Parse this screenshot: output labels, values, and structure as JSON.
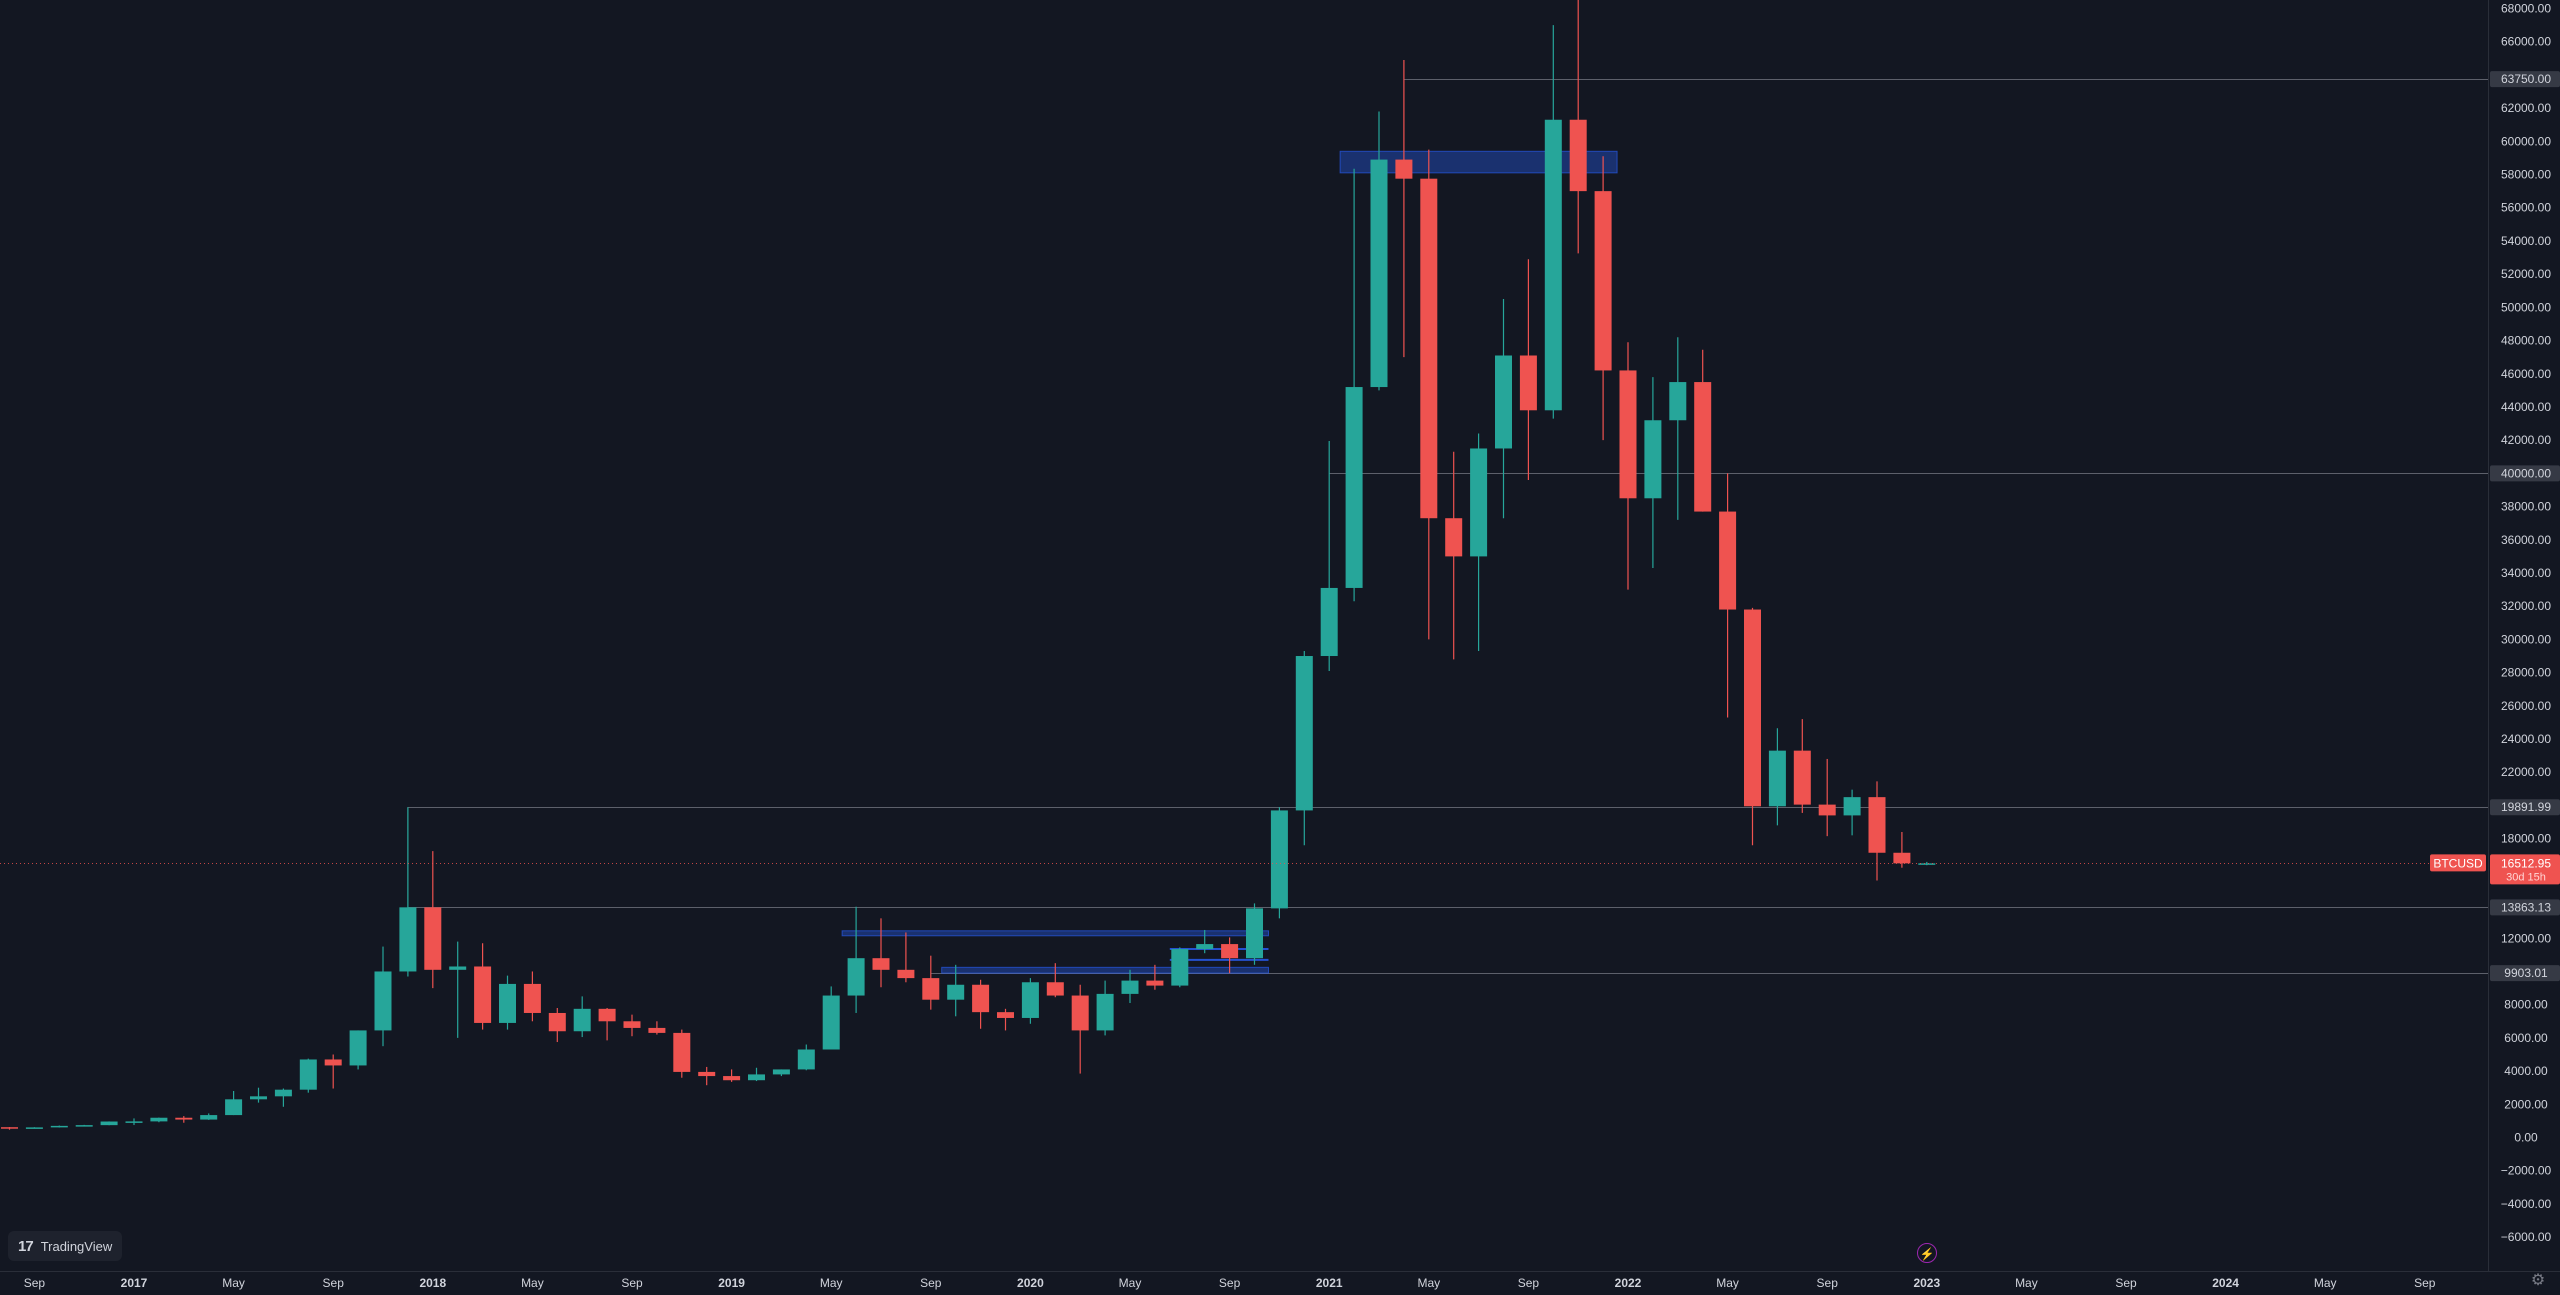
{
  "app": {
    "symbol": "BTCUSD",
    "brand": "TradingView",
    "countdown": "30d 15h"
  },
  "icons": {
    "logo": "tradingview-logo-icon",
    "settings": "gear-icon",
    "bolt": "lightning-icon"
  },
  "colors": {
    "background": "#131722",
    "up": "#26a69a",
    "down": "#ef5350",
    "zone": "#2962ff",
    "level_line": "#5d606b",
    "axis_text": "#d1d4dc"
  },
  "chart_data": {
    "type": "candlestick",
    "timeframe": "monthly",
    "ylim": [
      -7000,
      68500
    ],
    "y_ticks": [
      -6000,
      -4000,
      -2000,
      0,
      2000,
      4000,
      6000,
      8000,
      12000,
      18000,
      22000,
      24000,
      26000,
      28000,
      30000,
      32000,
      34000,
      36000,
      38000,
      42000,
      44000,
      46000,
      48000,
      50000,
      52000,
      54000,
      56000,
      58000,
      60000,
      62000,
      66000,
      68000
    ],
    "y_tick_labels": [
      "−6000.00",
      "−4000.00",
      "−2000.00",
      "0.00",
      "2000.00",
      "4000.00",
      "6000.00",
      "8000.00",
      "12000.00",
      "18000.00",
      "22000.00",
      "24000.00",
      "26000.00",
      "28000.00",
      "30000.00",
      "32000.00",
      "34000.00",
      "36000.00",
      "38000.00",
      "42000.00",
      "44000.00",
      "46000.00",
      "48000.00",
      "50000.00",
      "52000.00",
      "54000.00",
      "56000.00",
      "58000.00",
      "60000.00",
      "62000.00",
      "66000.00",
      "68000.00"
    ],
    "x_start": "2016-08",
    "x_end": "2025-02",
    "x_ticks": [
      {
        "date": "2016-09",
        "label": "Sep",
        "major": false
      },
      {
        "date": "2017-01",
        "label": "2017",
        "major": true
      },
      {
        "date": "2017-05",
        "label": "May",
        "major": false
      },
      {
        "date": "2017-09",
        "label": "Sep",
        "major": false
      },
      {
        "date": "2018-01",
        "label": "2018",
        "major": true
      },
      {
        "date": "2018-05",
        "label": "May",
        "major": false
      },
      {
        "date": "2018-09",
        "label": "Sep",
        "major": false
      },
      {
        "date": "2019-01",
        "label": "2019",
        "major": true
      },
      {
        "date": "2019-05",
        "label": "May",
        "major": false
      },
      {
        "date": "2019-09",
        "label": "Sep",
        "major": false
      },
      {
        "date": "2020-01",
        "label": "2020",
        "major": true
      },
      {
        "date": "2020-05",
        "label": "May",
        "major": false
      },
      {
        "date": "2020-09",
        "label": "Sep",
        "major": false
      },
      {
        "date": "2021-01",
        "label": "2021",
        "major": true
      },
      {
        "date": "2021-05",
        "label": "May",
        "major": false
      },
      {
        "date": "2021-09",
        "label": "Sep",
        "major": false
      },
      {
        "date": "2022-01",
        "label": "2022",
        "major": true
      },
      {
        "date": "2022-05",
        "label": "May",
        "major": false
      },
      {
        "date": "2022-09",
        "label": "Sep",
        "major": false
      },
      {
        "date": "2023-01",
        "label": "2023",
        "major": true
      },
      {
        "date": "2023-05",
        "label": "May",
        "major": false
      },
      {
        "date": "2023-09",
        "label": "Sep",
        "major": false
      },
      {
        "date": "2024-01",
        "label": "2024",
        "major": true
      },
      {
        "date": "2024-05",
        "label": "May",
        "major": false
      },
      {
        "date": "2024-09",
        "label": "Sep",
        "major": false
      }
    ],
    "candles": [
      {
        "t": "2016-08",
        "o": 620,
        "h": 630,
        "l": 470,
        "c": 570
      },
      {
        "t": "2016-09",
        "o": 575,
        "h": 620,
        "l": 560,
        "c": 609
      },
      {
        "t": "2016-10",
        "o": 609,
        "h": 720,
        "l": 600,
        "c": 700
      },
      {
        "t": "2016-11",
        "o": 700,
        "h": 760,
        "l": 690,
        "c": 745
      },
      {
        "t": "2016-12",
        "o": 745,
        "h": 970,
        "l": 740,
        "c": 963
      },
      {
        "t": "2017-01",
        "o": 963,
        "h": 1150,
        "l": 750,
        "c": 970
      },
      {
        "t": "2017-02",
        "o": 970,
        "h": 1200,
        "l": 920,
        "c": 1190
      },
      {
        "t": "2017-03",
        "o": 1190,
        "h": 1290,
        "l": 890,
        "c": 1080
      },
      {
        "t": "2017-04",
        "o": 1080,
        "h": 1450,
        "l": 1060,
        "c": 1350
      },
      {
        "t": "2017-05",
        "o": 1350,
        "h": 2800,
        "l": 1350,
        "c": 2300
      },
      {
        "t": "2017-06",
        "o": 2300,
        "h": 3000,
        "l": 2100,
        "c": 2480
      },
      {
        "t": "2017-07",
        "o": 2480,
        "h": 2950,
        "l": 1850,
        "c": 2880
      },
      {
        "t": "2017-08",
        "o": 2880,
        "h": 4750,
        "l": 2700,
        "c": 4700
      },
      {
        "t": "2017-09",
        "o": 4700,
        "h": 5000,
        "l": 2950,
        "c": 4340
      },
      {
        "t": "2017-10",
        "o": 4340,
        "h": 6450,
        "l": 4100,
        "c": 6450
      },
      {
        "t": "2017-11",
        "o": 6450,
        "h": 11500,
        "l": 5500,
        "c": 10000
      },
      {
        "t": "2017-12",
        "o": 10000,
        "h": 19891.99,
        "l": 9700,
        "c": 13863.13
      },
      {
        "t": "2018-01",
        "o": 13863.13,
        "h": 17250,
        "l": 9000,
        "c": 10100
      },
      {
        "t": "2018-02",
        "o": 10100,
        "h": 11800,
        "l": 6000,
        "c": 10300
      },
      {
        "t": "2018-03",
        "o": 10300,
        "h": 11700,
        "l": 6500,
        "c": 6900
      },
      {
        "t": "2018-04",
        "o": 6900,
        "h": 9750,
        "l": 6500,
        "c": 9250
      },
      {
        "t": "2018-05",
        "o": 9250,
        "h": 10000,
        "l": 7000,
        "c": 7500
      },
      {
        "t": "2018-06",
        "o": 7500,
        "h": 7800,
        "l": 5750,
        "c": 6400
      },
      {
        "t": "2018-07",
        "o": 6400,
        "h": 8500,
        "l": 6050,
        "c": 7750
      },
      {
        "t": "2018-08",
        "o": 7750,
        "h": 7800,
        "l": 5850,
        "c": 7000
      },
      {
        "t": "2018-09",
        "o": 7000,
        "h": 7400,
        "l": 6100,
        "c": 6600
      },
      {
        "t": "2018-10",
        "o": 6600,
        "h": 7000,
        "l": 6200,
        "c": 6300
      },
      {
        "t": "2018-11",
        "o": 6300,
        "h": 6500,
        "l": 3600,
        "c": 3950
      },
      {
        "t": "2018-12",
        "o": 3950,
        "h": 4250,
        "l": 3150,
        "c": 3700
      },
      {
        "t": "2019-01",
        "o": 3700,
        "h": 4100,
        "l": 3350,
        "c": 3450
      },
      {
        "t": "2019-02",
        "o": 3450,
        "h": 4200,
        "l": 3400,
        "c": 3800
      },
      {
        "t": "2019-03",
        "o": 3800,
        "h": 4100,
        "l": 3700,
        "c": 4100
      },
      {
        "t": "2019-04",
        "o": 4100,
        "h": 5600,
        "l": 4050,
        "c": 5300
      },
      {
        "t": "2019-05",
        "o": 5300,
        "h": 9100,
        "l": 5300,
        "c": 8550
      },
      {
        "t": "2019-06",
        "o": 8550,
        "h": 13900,
        "l": 7500,
        "c": 10800
      },
      {
        "t": "2019-07",
        "o": 10800,
        "h": 13200,
        "l": 9050,
        "c": 10100
      },
      {
        "t": "2019-08",
        "o": 10100,
        "h": 12350,
        "l": 9350,
        "c": 9600
      },
      {
        "t": "2019-09",
        "o": 9600,
        "h": 10950,
        "l": 7700,
        "c": 8300
      },
      {
        "t": "2019-10",
        "o": 8300,
        "h": 10400,
        "l": 7300,
        "c": 9200
      },
      {
        "t": "2019-11",
        "o": 9200,
        "h": 9500,
        "l": 6550,
        "c": 7550
      },
      {
        "t": "2019-12",
        "o": 7550,
        "h": 7750,
        "l": 6450,
        "c": 7200
      },
      {
        "t": "2020-01",
        "o": 7200,
        "h": 9600,
        "l": 6850,
        "c": 9350
      },
      {
        "t": "2020-02",
        "o": 9350,
        "h": 10500,
        "l": 8450,
        "c": 8550
      },
      {
        "t": "2020-03",
        "o": 8550,
        "h": 9200,
        "l": 3850,
        "c": 6450
      },
      {
        "t": "2020-04",
        "o": 6450,
        "h": 9450,
        "l": 6150,
        "c": 8650
      },
      {
        "t": "2020-05",
        "o": 8650,
        "h": 10100,
        "l": 8100,
        "c": 9450
      },
      {
        "t": "2020-06",
        "o": 9450,
        "h": 10400,
        "l": 8900,
        "c": 9150
      },
      {
        "t": "2020-07",
        "o": 9150,
        "h": 11450,
        "l": 9050,
        "c": 11350
      },
      {
        "t": "2020-08",
        "o": 11350,
        "h": 12500,
        "l": 11100,
        "c": 11650
      },
      {
        "t": "2020-09",
        "o": 11650,
        "h": 12050,
        "l": 9900,
        "c": 10800
      },
      {
        "t": "2020-10",
        "o": 10800,
        "h": 14100,
        "l": 10400,
        "c": 13800
      },
      {
        "t": "2020-11",
        "o": 13800,
        "h": 19900,
        "l": 13200,
        "c": 19700
      },
      {
        "t": "2020-12",
        "o": 19700,
        "h": 29300,
        "l": 17600,
        "c": 29000
      },
      {
        "t": "2021-01",
        "o": 29000,
        "h": 41950,
        "l": 28100,
        "c": 33100
      },
      {
        "t": "2021-02",
        "o": 33100,
        "h": 58350,
        "l": 32300,
        "c": 45200
      },
      {
        "t": "2021-03",
        "o": 45200,
        "h": 61800,
        "l": 45000,
        "c": 58900
      },
      {
        "t": "2021-04",
        "o": 58900,
        "h": 64900,
        "l": 47000,
        "c": 57750
      },
      {
        "t": "2021-05",
        "o": 57750,
        "h": 59500,
        "l": 30000,
        "c": 37300
      },
      {
        "t": "2021-06",
        "o": 37300,
        "h": 41300,
        "l": 28800,
        "c": 35000
      },
      {
        "t": "2021-07",
        "o": 35000,
        "h": 42400,
        "l": 29300,
        "c": 41500
      },
      {
        "t": "2021-08",
        "o": 41500,
        "h": 50500,
        "l": 37300,
        "c": 47100
      },
      {
        "t": "2021-09",
        "o": 47100,
        "h": 52900,
        "l": 39600,
        "c": 43800
      },
      {
        "t": "2021-10",
        "o": 43800,
        "h": 67000,
        "l": 43300,
        "c": 61300
      },
      {
        "t": "2021-11",
        "o": 61300,
        "h": 69000,
        "l": 53250,
        "c": 57000
      },
      {
        "t": "2021-12",
        "o": 57000,
        "h": 59100,
        "l": 42000,
        "c": 46200
      },
      {
        "t": "2022-01",
        "o": 46200,
        "h": 47900,
        "l": 33000,
        "c": 38500
      },
      {
        "t": "2022-02",
        "o": 38500,
        "h": 45800,
        "l": 34300,
        "c": 43200
      },
      {
        "t": "2022-03",
        "o": 43200,
        "h": 48200,
        "l": 37200,
        "c": 45500
      },
      {
        "t": "2022-04",
        "o": 45500,
        "h": 47450,
        "l": 37700,
        "c": 37700
      },
      {
        "t": "2022-05",
        "o": 37700,
        "h": 40000,
        "l": 25300,
        "c": 31800
      },
      {
        "t": "2022-06",
        "o": 31800,
        "h": 31900,
        "l": 17600,
        "c": 19950
      },
      {
        "t": "2022-07",
        "o": 19950,
        "h": 24650,
        "l": 18800,
        "c": 23300
      },
      {
        "t": "2022-08",
        "o": 23300,
        "h": 25200,
        "l": 19550,
        "c": 20050
      },
      {
        "t": "2022-09",
        "o": 20050,
        "h": 22800,
        "l": 18150,
        "c": 19400
      },
      {
        "t": "2022-10",
        "o": 19400,
        "h": 20950,
        "l": 18200,
        "c": 20500
      },
      {
        "t": "2022-11",
        "o": 20500,
        "h": 21450,
        "l": 15480,
        "c": 17150
      },
      {
        "t": "2022-12",
        "o": 17150,
        "h": 18400,
        "l": 16250,
        "c": 16512.95
      },
      {
        "t": "2023-01",
        "o": 16512.95,
        "h": 16600,
        "l": 16400,
        "c": 16512.95
      }
    ],
    "levels": [
      {
        "value": 63750,
        "label": "63750.00",
        "from": "2021-04"
      },
      {
        "value": 40000,
        "label": "40000.00",
        "from": "2021-01"
      },
      {
        "value": 19891.99,
        "label": "19891.99",
        "from": "2017-12"
      },
      {
        "value": 13863.13,
        "label": "13863.13",
        "from": "2017-12"
      },
      {
        "value": 9903.01,
        "label": "9903.01",
        "from": "2019-09"
      }
    ],
    "zones": [
      {
        "from": "2021-02",
        "to": "2021-12",
        "low": 58100,
        "high": 59400
      },
      {
        "from": "2019-06",
        "to": "2020-10",
        "low": 12150,
        "high": 12450
      },
      {
        "from": "2019-10",
        "to": "2020-10",
        "low": 9900,
        "high": 10250
      }
    ],
    "zone_lines": [
      {
        "from": "2020-07",
        "to": "2020-10",
        "value": 11350
      },
      {
        "from": "2020-07",
        "to": "2020-10",
        "value": 10700
      }
    ],
    "last_price": 16512.95,
    "last_price_label": "16512.95"
  }
}
